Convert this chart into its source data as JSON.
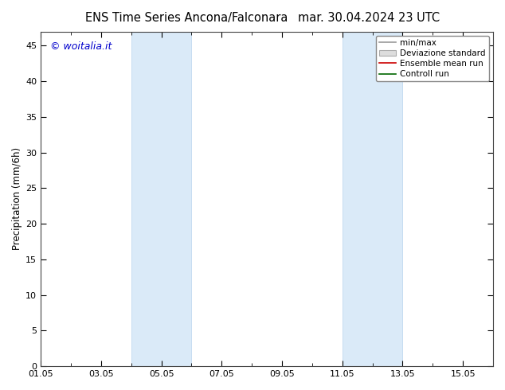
{
  "title_left": "ENS Time Series Ancona/Falconara",
  "title_right": "mar. 30.04.2024 23 UTC",
  "ylabel": "Precipitation (mm/6h)",
  "watermark": "© woitalia.it",
  "watermark_color": "#0000cc",
  "ymin": 0,
  "ymax": 47,
  "yticks": [
    0,
    5,
    10,
    15,
    20,
    25,
    30,
    35,
    40,
    45
  ],
  "xtick_labels": [
    "01.05",
    "03.05",
    "05.05",
    "07.05",
    "09.05",
    "11.05",
    "13.05",
    "15.05"
  ],
  "xtick_positions": [
    1,
    3,
    5,
    7,
    9,
    11,
    13,
    15
  ],
  "xlim": [
    1,
    16
  ],
  "shaded_bands": [
    {
      "xstart": 4.0,
      "xend": 6.0
    },
    {
      "xstart": 11.0,
      "xend": 13.0
    }
  ],
  "shaded_color": "#daeaf8",
  "shaded_edge_color": "#b8d4ee",
  "legend_minmax_color": "#999999",
  "legend_std_facecolor": "#dddddd",
  "legend_std_edgecolor": "#aaaaaa",
  "legend_ensemble_color": "#cc0000",
  "legend_control_color": "#006600",
  "bg_color": "#ffffff",
  "title_fontsize": 10.5,
  "ylabel_fontsize": 8.5,
  "tick_fontsize": 8,
  "watermark_fontsize": 9,
  "legend_fontsize": 7.5
}
